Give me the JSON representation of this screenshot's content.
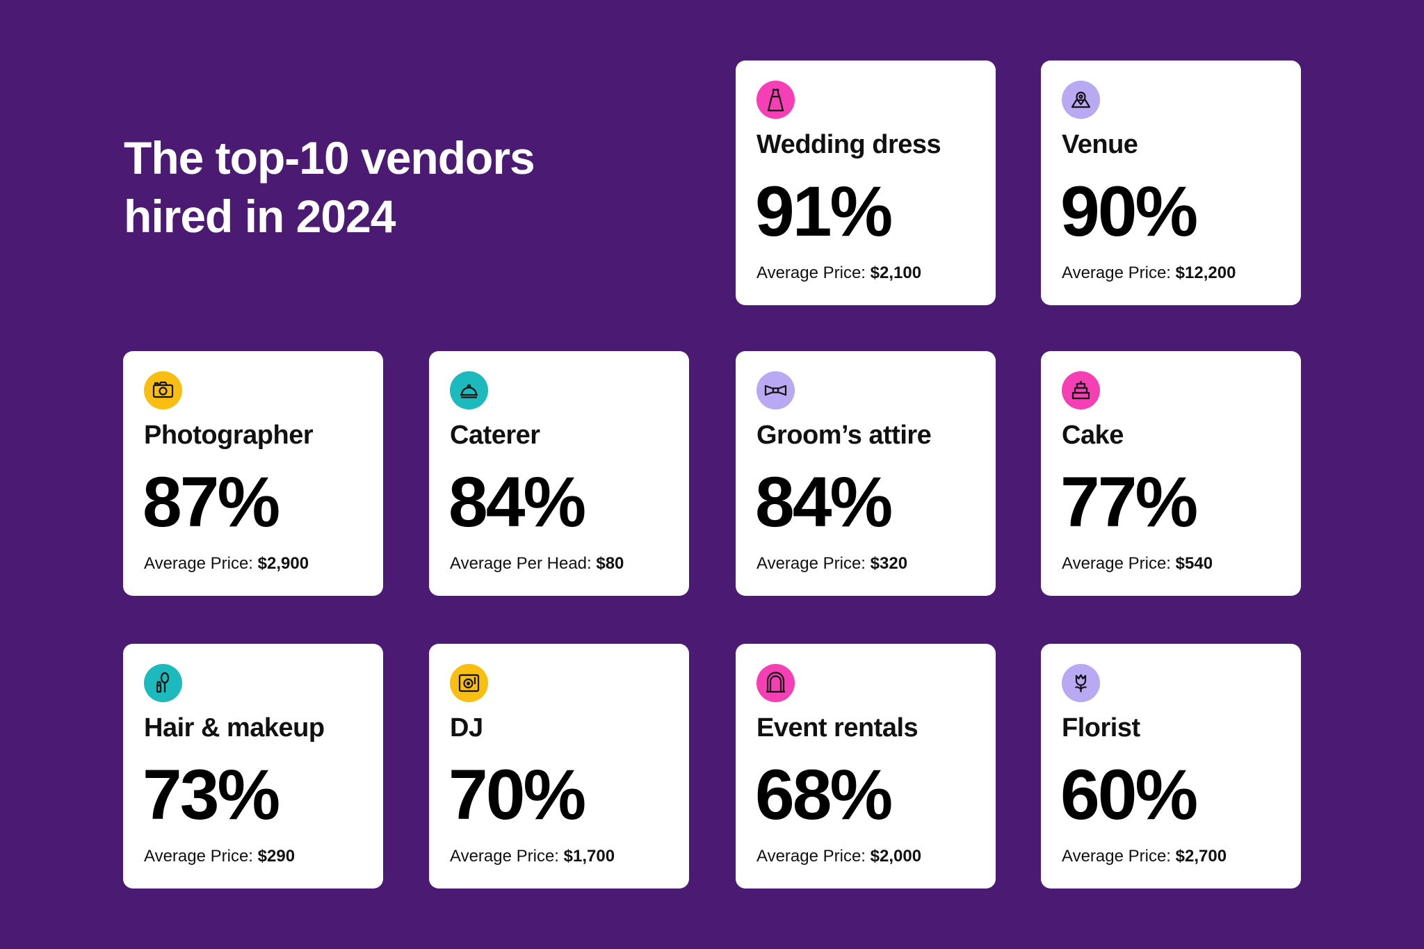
{
  "title": [
    "The top-10 vendors",
    "hired in 2024"
  ],
  "vendors": [
    {
      "name": "Wedding dress",
      "pct": "91%",
      "price_label": "Average Price:",
      "price": "$2,100",
      "icon": "dress-icon",
      "color": "#f43fb5"
    },
    {
      "name": "Venue",
      "pct": "90%",
      "price_label": "Average Price:",
      "price": "$12,200",
      "icon": "venue-icon",
      "color": "#b9a8f2"
    },
    {
      "name": "Photographer",
      "pct": "87%",
      "price_label": "Average Price:",
      "price": "$2,900",
      "icon": "camera-icon",
      "color": "#f9be12"
    },
    {
      "name": "Caterer",
      "pct": "84%",
      "price_label": "Average Per Head:",
      "price": "$80",
      "icon": "cloche-icon",
      "color": "#1cb9bd"
    },
    {
      "name": "Groom’s attire",
      "pct": "84%",
      "price_label": "Average Price:",
      "price": "$320",
      "icon": "bowtie-icon",
      "color": "#b9a8f2"
    },
    {
      "name": "Cake",
      "pct": "77%",
      "price_label": "Average Price:",
      "price": "$540",
      "icon": "cake-icon",
      "color": "#f43fb5"
    },
    {
      "name": "Hair & makeup",
      "pct": "73%",
      "price_label": "Average Price:",
      "price": "$290",
      "icon": "brush-lipstick-icon",
      "color": "#1cb9bd"
    },
    {
      "name": "DJ",
      "pct": "70%",
      "price_label": "Average Price:",
      "price": "$1,700",
      "icon": "turntable-icon",
      "color": "#f9be12"
    },
    {
      "name": "Event rentals",
      "pct": "68%",
      "price_label": "Average Price:",
      "price": "$2,000",
      "icon": "arch-icon",
      "color": "#f43fb5"
    },
    {
      "name": "Florist",
      "pct": "60%",
      "price_label": "Average Price:",
      "price": "$2,700",
      "icon": "flower-icon",
      "color": "#b9a8f2"
    }
  ]
}
